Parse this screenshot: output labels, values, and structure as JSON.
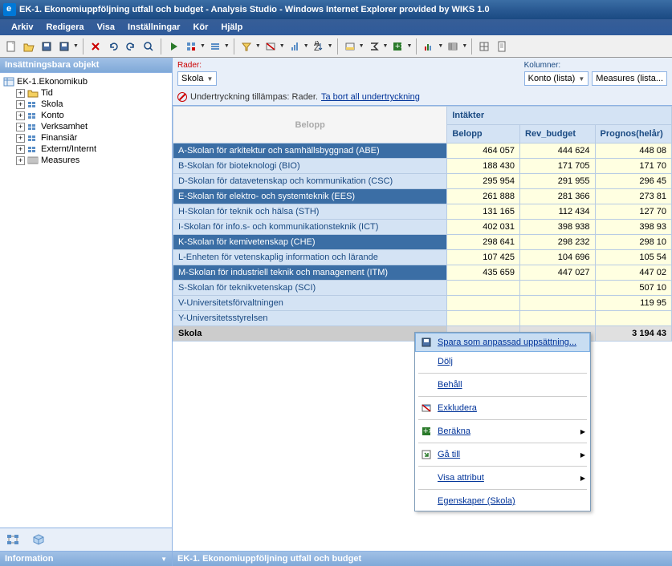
{
  "window": {
    "title": "EK-1. Ekonomiuppföljning utfall och budget - Analysis Studio - Windows Internet Explorer provided by WIKS 1.0"
  },
  "menu": {
    "items": [
      "Arkiv",
      "Redigera",
      "Visa",
      "Inställningar",
      "Kör",
      "Hjälp"
    ]
  },
  "left": {
    "header": "Insättningsbara objekt",
    "root": "EK-1.Ekonomikub",
    "items": [
      "Tid",
      "Skola",
      "Konto",
      "Verksamhet",
      "Finansiär",
      "Externt/Internt",
      "Measures"
    ],
    "info": "Information"
  },
  "selectors": {
    "rows_label": "Rader:",
    "rows_value": "Skola",
    "cols_label": "Kolumner:",
    "cols_val1": "Konto (lista)",
    "cols_val2": "Measures (lista..."
  },
  "suppress": {
    "text": "Undertryckning tillämpas: Rader.",
    "link": "Ta bort all undertryckning"
  },
  "table": {
    "corner": "Belopp",
    "group_header": "Intäkter",
    "columns": [
      "Belopp",
      "Rev_budget",
      "Prognos(helår)"
    ],
    "rows": [
      {
        "label": "A-Skolan för arkitektur och samhällsbyggnad (ABE)",
        "sel": true,
        "vals": [
          "464 057",
          "444 624",
          "448 08"
        ]
      },
      {
        "label": "B-Skolan för bioteknologi (BIO)",
        "sel": false,
        "vals": [
          "188 430",
          "171 705",
          "171 70"
        ]
      },
      {
        "label": "D-Skolan för datavetenskap och kommunikation (CSC)",
        "sel": false,
        "vals": [
          "295 954",
          "291 955",
          "296 45"
        ]
      },
      {
        "label": "E-Skolan för elektro- och systemteknik (EES)",
        "sel": true,
        "vals": [
          "261 888",
          "281 366",
          "273 81"
        ]
      },
      {
        "label": "H-Skolan för teknik och hälsa (STH)",
        "sel": false,
        "vals": [
          "131 165",
          "112 434",
          "127 70"
        ]
      },
      {
        "label": "I-Skolan för info.s- och kommunikationsteknik (ICT)",
        "sel": false,
        "vals": [
          "402 031",
          "398 938",
          "398 93"
        ]
      },
      {
        "label": "K-Skolan för kemivetenskap (CHE)",
        "sel": true,
        "vals": [
          "298 641",
          "298 232",
          "298 10"
        ]
      },
      {
        "label": "L-Enheten för vetenskaplig information och lärande",
        "sel": false,
        "vals": [
          "107 425",
          "104 696",
          "105 54"
        ]
      },
      {
        "label": "M-Skolan för industriell teknik och management (ITM)",
        "sel": true,
        "vals": [
          "435 659",
          "447 027",
          "447 02"
        ]
      },
      {
        "label": "S-Skolan för teknikvetenskap (SCI)",
        "sel": false,
        "vals": [
          "",
          "",
          "507 10"
        ]
      },
      {
        "label": "V-Universitetsförvaltningen",
        "sel": false,
        "vals": [
          "",
          "",
          "119 95"
        ]
      },
      {
        "label": "Y-Universitetsstyrelsen",
        "sel": false,
        "vals": [
          "",
          "",
          ""
        ]
      }
    ],
    "total_label": "Skola",
    "total_vals": [
      "",
      "",
      "3 194 43"
    ]
  },
  "context": {
    "save": "Spara som anpassad uppsättning...",
    "hide": "Dölj",
    "keep": "Behåll",
    "exclude": "Exkludera",
    "calc": "Beräkna",
    "goto": "Gå till",
    "attr": "Visa attribut",
    "props": "Egenskaper (Skola)"
  },
  "footer": {
    "title": "EK-1. Ekonomiuppföljning utfall och budget"
  }
}
